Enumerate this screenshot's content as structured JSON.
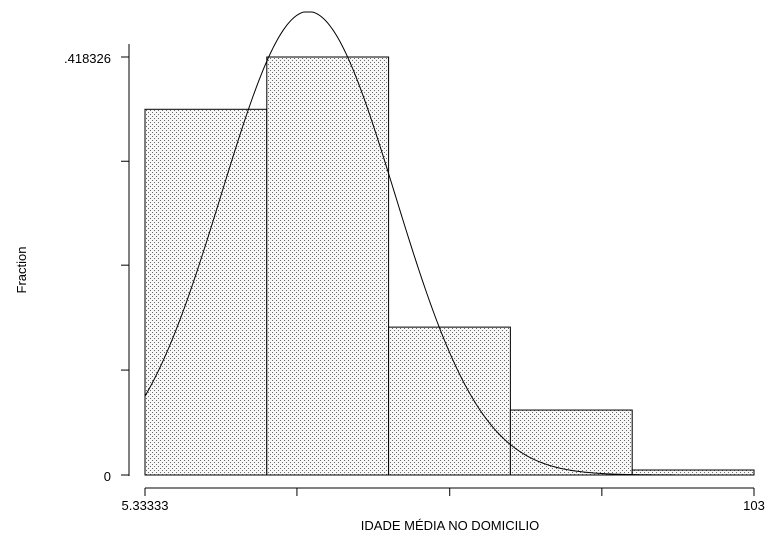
{
  "chart_data": {
    "type": "bar",
    "xlabel": "IDADE MÉDIA NO DOMICILIO",
    "ylabel": "Fraction",
    "x_tick_labels": [
      "5.33333",
      "103"
    ],
    "y_tick_labels": [
      ".418326",
      "0"
    ],
    "xlim": [
      5.33333,
      103
    ],
    "ylim": [
      0,
      0.418326
    ],
    "bins": [
      {
        "start": 5.33333,
        "end": 24.8667,
        "value": 0.366
      },
      {
        "start": 24.8667,
        "end": 44.4,
        "value": 0.418326
      },
      {
        "start": 44.4,
        "end": 63.9333,
        "value": 0.148
      },
      {
        "start": 63.9333,
        "end": 83.4667,
        "value": 0.065
      },
      {
        "start": 83.4667,
        "end": 103,
        "value": 0.005
      }
    ],
    "normal_curve": {
      "mean": 31.5,
      "sd": 13.9,
      "peak": 0.464
    },
    "y_minor_ticks": [
      0.105,
      0.21,
      0.314
    ],
    "x_minor_ticks": [
      29.7,
      54.2,
      78.6
    ],
    "bar_fill": "stippled",
    "bar_color": "#f2f2f2",
    "line_color": "#000000"
  }
}
